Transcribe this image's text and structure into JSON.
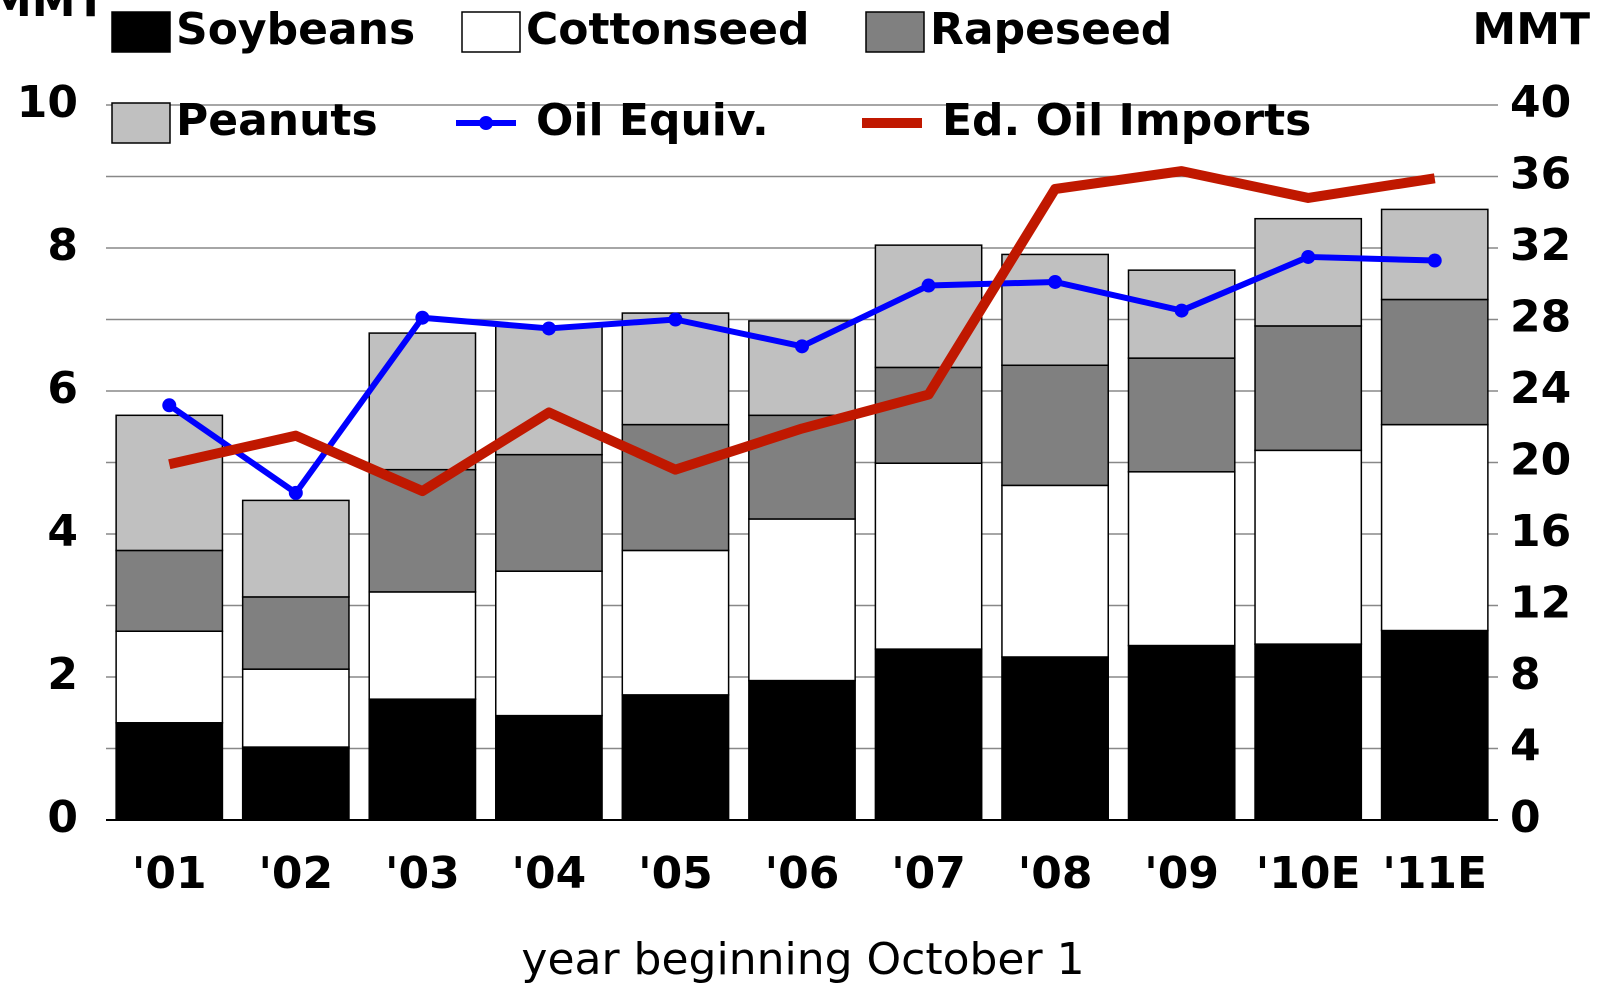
{
  "chart_data": {
    "type": "bar",
    "stacked": true,
    "categories": [
      "'01",
      "'02",
      "'03",
      "'04",
      "'05",
      "'06",
      "'07",
      "'08",
      "'09",
      "'10E",
      "'11E"
    ],
    "series": [
      {
        "name": "Soybeans",
        "color": "#000000",
        "values": [
          1.36,
          1.02,
          1.69,
          1.46,
          1.75,
          1.95,
          2.39,
          2.28,
          2.44,
          2.46,
          2.65
        ]
      },
      {
        "name": "Cottonseed",
        "color": "#ffffff",
        "values": [
          1.28,
          1.09,
          1.5,
          2.02,
          2.02,
          2.26,
          2.6,
          2.4,
          2.43,
          2.71,
          2.88
        ]
      },
      {
        "name": "Rapeseed",
        "color": "#808080",
        "values": [
          1.13,
          1.01,
          1.71,
          1.63,
          1.76,
          1.45,
          1.34,
          1.68,
          1.59,
          1.74,
          1.75
        ]
      },
      {
        "name": "Peanuts",
        "color": "#c0c0c0",
        "values": [
          1.89,
          1.35,
          1.91,
          1.8,
          1.56,
          1.32,
          1.71,
          1.55,
          1.23,
          1.5,
          1.26
        ]
      },
      {
        "name": "Oil Equiv.",
        "type": "line",
        "axis": "y2",
        "marker": true,
        "color": "#0000ff",
        "values": [
          23.2,
          18.3,
          28.1,
          27.5,
          28.0,
          26.5,
          29.9,
          30.1,
          28.5,
          31.5,
          31.3
        ]
      },
      {
        "name": "Ed. Oil Imports",
        "type": "line",
        "axis": "y2",
        "marker": false,
        "color": "#c01800",
        "values": [
          19.9,
          21.5,
          18.4,
          22.8,
          19.6,
          21.9,
          23.8,
          35.3,
          36.3,
          34.8,
          35.9
        ]
      }
    ],
    "ylabel": "MMT",
    "y2label": "MMT",
    "xlabel": "year beginning October 1",
    "ylim": [
      0,
      10
    ],
    "yticks": [
      0,
      2,
      4,
      6,
      8,
      10
    ],
    "y2lim": [
      0,
      40
    ],
    "y2ticks": [
      0,
      4,
      8,
      12,
      16,
      20,
      24,
      28,
      32,
      36,
      40
    ],
    "grid": true
  }
}
